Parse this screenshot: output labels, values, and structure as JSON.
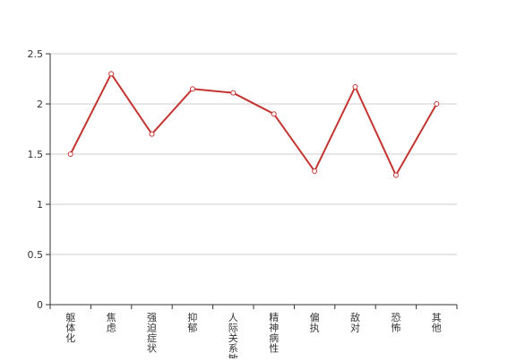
{
  "chart_data": {
    "type": "line",
    "title": "",
    "xlabel": "",
    "ylabel": "",
    "categories": [
      "躯体化",
      "焦虑",
      "强迫症状",
      "抑郁",
      "人际关系敏感",
      "精神病性",
      "偏执",
      "敌对",
      "恐怖",
      "其他"
    ],
    "series": [
      {
        "values": [
          1.5,
          2.3,
          1.7,
          2.15,
          2.11,
          1.9,
          1.33,
          2.17,
          1.29,
          2.0
        ],
        "color": "#c23531"
      }
    ],
    "y_ticks": [
      "0",
      "0.5",
      "1",
      "1.5",
      "2",
      "2.5"
    ],
    "ylim": [
      0,
      2.5
    ],
    "grid": true,
    "legend": "none"
  }
}
